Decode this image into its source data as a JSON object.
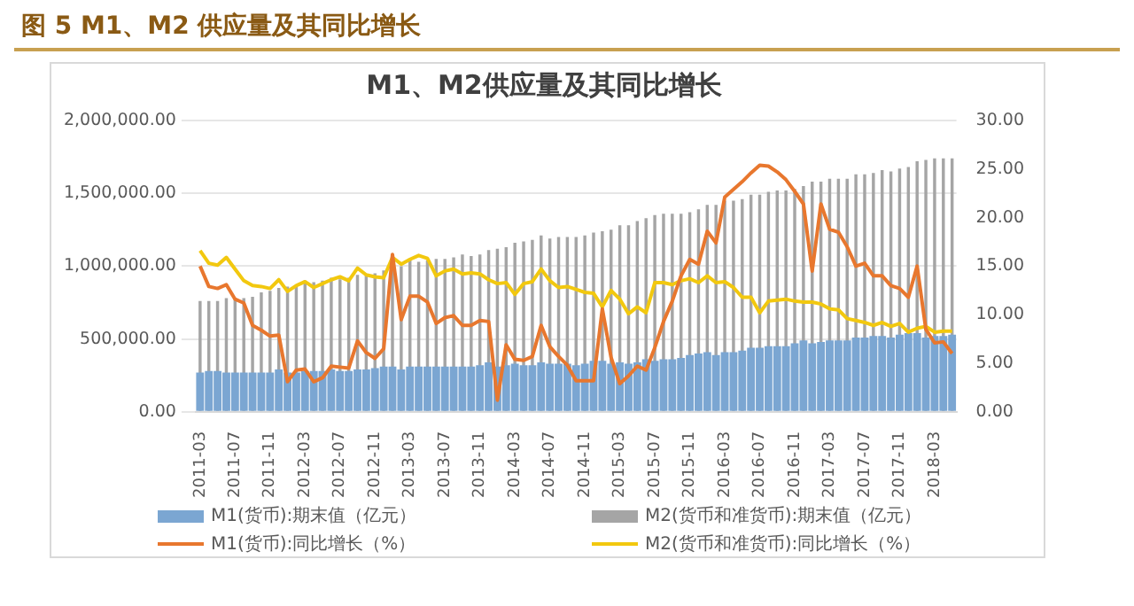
{
  "chart_data": {
    "type": "bar",
    "title": "M1、M2供应量及其同比增长",
    "annotations": [
      "图 5 M1、M2 供应量及其同比增长"
    ],
    "categories": [
      "2011-03",
      null,
      null,
      null,
      "2011-07",
      null,
      null,
      null,
      "2011-11",
      null,
      null,
      null,
      "2012-03",
      null,
      null,
      null,
      "2012-07",
      null,
      null,
      null,
      "2012-11",
      null,
      null,
      null,
      "2013-03",
      null,
      null,
      null,
      "2013-07",
      null,
      null,
      null,
      "2013-11",
      null,
      null,
      null,
      "2014-03",
      null,
      null,
      null,
      "2014-07",
      null,
      null,
      null,
      "2014-11",
      null,
      null,
      null,
      "2015-03",
      null,
      null,
      null,
      "2015-07",
      null,
      null,
      null,
      "2015-11",
      null,
      null,
      null,
      "2016-03",
      null,
      null,
      null,
      "2016-07",
      null,
      null,
      null,
      "2016-11",
      null,
      null,
      null,
      "2017-03",
      null,
      null,
      null,
      "2017-07",
      null,
      null,
      null,
      "2017-11",
      null,
      null,
      null,
      "2018-03",
      null,
      null
    ],
    "series": [
      {
        "name": "M1(货币):期末值（亿元）",
        "color": "#7ba6d2",
        "values": [
          270000,
          280000,
          280000,
          270000,
          270000,
          270000,
          270000,
          270000,
          270000,
          290000,
          270000,
          270000,
          280000,
          280000,
          280000,
          290000,
          280000,
          280000,
          290000,
          290000,
          300000,
          310000,
          310000,
          290000,
          310000,
          310000,
          310000,
          310000,
          310000,
          310000,
          310000,
          310000,
          320000,
          340000,
          310000,
          320000,
          330000,
          320000,
          320000,
          340000,
          330000,
          330000,
          330000,
          320000,
          330000,
          350000,
          350000,
          330000,
          340000,
          330000,
          340000,
          360000,
          350000,
          360000,
          360000,
          370000,
          390000,
          400000,
          410000,
          390000,
          410000,
          410000,
          420000,
          440000,
          440000,
          450000,
          450000,
          450000,
          470000,
          490000,
          470000,
          480000,
          490000,
          490000,
          490000,
          510000,
          510000,
          520000,
          520000,
          510000,
          530000,
          540000,
          540000,
          510000,
          520000,
          520000,
          530000
        ]
      },
      {
        "name": "M2(货币和准货币):期末值（亿元）",
        "color": "#a5a5a5",
        "values": [
          760000,
          760000,
          760000,
          780000,
          770000,
          780000,
          790000,
          820000,
          830000,
          850000,
          860000,
          870000,
          900000,
          890000,
          900000,
          920000,
          910000,
          920000,
          940000,
          940000,
          950000,
          970000,
          990000,
          1000000,
          1040000,
          1030000,
          1040000,
          1050000,
          1050000,
          1060000,
          1080000,
          1070000,
          1080000,
          1110000,
          1120000,
          1130000,
          1160000,
          1170000,
          1180000,
          1210000,
          1190000,
          1200000,
          1200000,
          1200000,
          1210000,
          1230000,
          1240000,
          1250000,
          1280000,
          1280000,
          1310000,
          1330000,
          1350000,
          1360000,
          1360000,
          1360000,
          1370000,
          1390000,
          1420000,
          1420000,
          1450000,
          1450000,
          1460000,
          1490000,
          1490000,
          1510000,
          1520000,
          1520000,
          1530000,
          1550000,
          1580000,
          1580000,
          1600000,
          1600000,
          1600000,
          1630000,
          1630000,
          1640000,
          1660000,
          1650000,
          1670000,
          1680000,
          1720000,
          1730000,
          1740000,
          1740000,
          1740000
        ]
      },
      {
        "name": "M1(货币):同比增长（%）",
        "type": "line",
        "axis": "y2",
        "color": "#e8772e",
        "values": [
          15.0,
          12.9,
          12.7,
          13.1,
          11.6,
          11.2,
          8.9,
          8.4,
          7.8,
          7.9,
          3.1,
          4.3,
          4.4,
          3.1,
          3.5,
          4.7,
          4.6,
          4.5,
          7.3,
          6.1,
          5.5,
          6.5,
          16.2,
          9.5,
          11.9,
          11.9,
          11.3,
          9.1,
          9.7,
          9.9,
          8.9,
          8.9,
          9.4,
          9.3,
          1.2,
          6.9,
          5.4,
          5.3,
          5.7,
          8.9,
          6.7,
          5.7,
          4.8,
          3.2,
          3.2,
          3.2,
          10.6,
          5.6,
          2.9,
          3.7,
          4.7,
          4.3,
          6.6,
          9.3,
          11.4,
          14.0,
          15.7,
          15.2,
          18.6,
          17.4,
          22.1,
          22.9,
          23.7,
          24.6,
          25.4,
          25.3,
          24.7,
          23.9,
          22.7,
          21.4,
          14.5,
          21.4,
          18.8,
          18.5,
          17.0,
          15.0,
          15.3,
          14.0,
          14.0,
          13.0,
          12.7,
          11.8,
          15.0,
          8.5,
          7.1,
          7.2,
          6.0
        ]
      },
      {
        "name": "M2(货币和准货币):同比增长（%）",
        "type": "line",
        "axis": "y2",
        "color": "#f2c80f",
        "values": [
          16.6,
          15.3,
          15.1,
          15.9,
          14.7,
          13.5,
          13.0,
          12.9,
          12.7,
          13.6,
          12.4,
          13.0,
          13.4,
          12.8,
          13.2,
          13.6,
          13.9,
          13.5,
          14.8,
          14.1,
          13.9,
          13.8,
          15.9,
          15.2,
          15.7,
          16.1,
          15.8,
          14.0,
          14.5,
          14.7,
          14.2,
          14.3,
          14.2,
          13.6,
          13.2,
          13.3,
          12.1,
          13.2,
          13.4,
          14.7,
          13.5,
          12.8,
          12.9,
          12.6,
          12.3,
          12.2,
          10.8,
          12.5,
          11.6,
          10.1,
          10.8,
          10.2,
          13.3,
          13.3,
          13.1,
          13.5,
          13.7,
          13.3,
          14.0,
          13.3,
          13.4,
          12.8,
          11.8,
          11.8,
          10.2,
          11.4,
          11.5,
          11.6,
          11.4,
          11.3,
          11.3,
          11.1,
          10.6,
          10.5,
          9.6,
          9.4,
          9.2,
          8.9,
          9.2,
          8.8,
          9.1,
          8.2,
          8.6,
          8.8,
          8.2,
          8.3,
          8.3
        ]
      }
    ],
    "ylim": [
      0,
      2000000
    ],
    "yticks": [
      {
        "value": 0,
        "label": "0.00"
      },
      {
        "value": 500000,
        "label": "500,000.00"
      },
      {
        "value": 1000000,
        "label": "1,000,000.00"
      },
      {
        "value": 1500000,
        "label": "1,500,000.00"
      },
      {
        "value": 2000000,
        "label": "2,000,000.00"
      }
    ],
    "y2lim": [
      0,
      30
    ],
    "y2ticks": [
      {
        "value": 0,
        "label": "0.00"
      },
      {
        "value": 5,
        "label": "5.00"
      },
      {
        "value": 10,
        "label": "10.00"
      },
      {
        "value": 15,
        "label": "15.00"
      },
      {
        "value": 20,
        "label": "20.00"
      },
      {
        "value": 25,
        "label": "25.00"
      },
      {
        "value": 30,
        "label": "30.00"
      }
    ],
    "grid": "y",
    "legend": "bottom",
    "marker": "none",
    "line_style": "solid"
  }
}
